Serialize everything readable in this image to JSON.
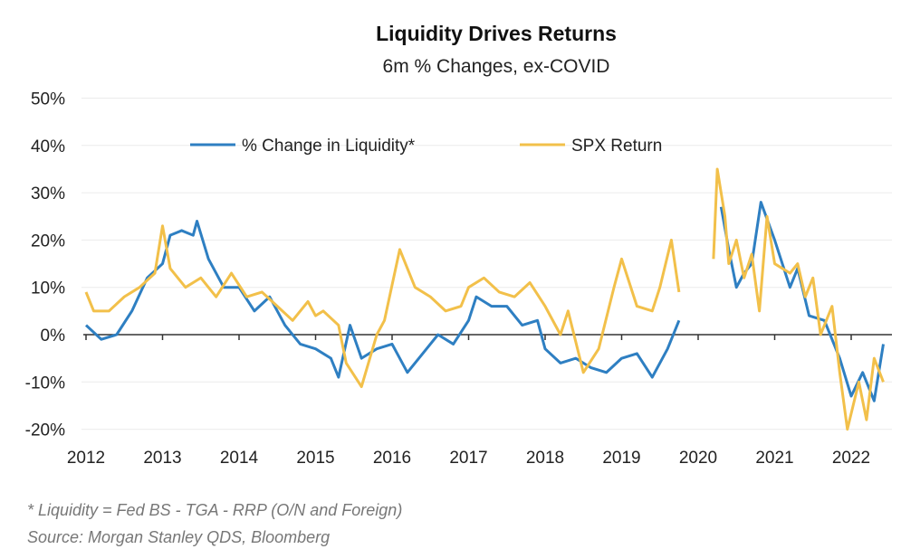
{
  "chart_data": {
    "type": "line",
    "title": "Liquidity Drives Returns",
    "subtitle": "6m % Changes, ex-COVID",
    "xlabel": "",
    "ylabel": "",
    "xlim": [
      2012,
      2022.45
    ],
    "ylim": [
      -20,
      50
    ],
    "y_ticks": [
      -20,
      -10,
      0,
      10,
      20,
      30,
      40,
      50
    ],
    "y_tick_labels": [
      "-20%",
      "-10%",
      "0%",
      "10%",
      "20%",
      "30%",
      "40%",
      "50%"
    ],
    "x_ticks": [
      2012,
      2013,
      2014,
      2015,
      2016,
      2017,
      2018,
      2019,
      2020,
      2021,
      2022
    ],
    "x_tick_labels": [
      "2012",
      "2013",
      "2014",
      "2015",
      "2016",
      "2017",
      "2018",
      "2019",
      "2020",
      "2021",
      "2022"
    ],
    "grid": true,
    "legend_position": "top-center",
    "series": [
      {
        "name": "% Change in Liquidity*",
        "color": "#2e7fc2",
        "segments": [
          [
            [
              2012.0,
              2
            ],
            [
              2012.2,
              -1
            ],
            [
              2012.4,
              0
            ],
            [
              2012.6,
              5
            ],
            [
              2012.8,
              12
            ],
            [
              2013.0,
              15
            ],
            [
              2013.1,
              21
            ],
            [
              2013.25,
              22
            ],
            [
              2013.4,
              21
            ],
            [
              2013.45,
              24
            ],
            [
              2013.6,
              16
            ],
            [
              2013.8,
              10
            ],
            [
              2014.0,
              10
            ],
            [
              2014.2,
              5
            ],
            [
              2014.4,
              8
            ],
            [
              2014.6,
              2
            ],
            [
              2014.8,
              -2
            ],
            [
              2015.0,
              -3
            ],
            [
              2015.2,
              -5
            ],
            [
              2015.3,
              -9
            ],
            [
              2015.45,
              2
            ],
            [
              2015.6,
              -5
            ],
            [
              2015.8,
              -3
            ],
            [
              2016.0,
              -2
            ],
            [
              2016.2,
              -8
            ],
            [
              2016.4,
              -4
            ],
            [
              2016.6,
              0
            ],
            [
              2016.8,
              -2
            ],
            [
              2017.0,
              3
            ],
            [
              2017.1,
              8
            ],
            [
              2017.3,
              6
            ],
            [
              2017.5,
              6
            ],
            [
              2017.7,
              2
            ],
            [
              2017.9,
              3
            ],
            [
              2018.0,
              -3
            ],
            [
              2018.2,
              -6
            ],
            [
              2018.4,
              -5
            ],
            [
              2018.6,
              -7
            ],
            [
              2018.8,
              -8
            ],
            [
              2019.0,
              -5
            ],
            [
              2019.2,
              -4
            ],
            [
              2019.4,
              -9
            ],
            [
              2019.6,
              -3
            ],
            [
              2019.75,
              3
            ]
          ],
          [
            [
              2020.3,
              27
            ],
            [
              2020.4,
              18
            ],
            [
              2020.5,
              10
            ],
            [
              2020.6,
              13
            ],
            [
              2020.7,
              15
            ],
            [
              2020.82,
              28
            ],
            [
              2021.0,
              20
            ],
            [
              2021.2,
              10
            ],
            [
              2021.3,
              14
            ],
            [
              2021.45,
              4
            ],
            [
              2021.65,
              3
            ],
            [
              2021.85,
              -5
            ],
            [
              2022.0,
              -13
            ],
            [
              2022.15,
              -8
            ],
            [
              2022.3,
              -14
            ],
            [
              2022.42,
              -2
            ]
          ]
        ]
      },
      {
        "name": "SPX Return",
        "color": "#f2c04a",
        "segments": [
          [
            [
              2012.0,
              9
            ],
            [
              2012.1,
              5
            ],
            [
              2012.3,
              5
            ],
            [
              2012.5,
              8
            ],
            [
              2012.7,
              10
            ],
            [
              2012.9,
              13
            ],
            [
              2013.0,
              23
            ],
            [
              2013.1,
              14
            ],
            [
              2013.3,
              10
            ],
            [
              2013.5,
              12
            ],
            [
              2013.7,
              8
            ],
            [
              2013.9,
              13
            ],
            [
              2014.1,
              8
            ],
            [
              2014.3,
              9
            ],
            [
              2014.5,
              6
            ],
            [
              2014.7,
              3
            ],
            [
              2014.9,
              7
            ],
            [
              2015.0,
              4
            ],
            [
              2015.1,
              5
            ],
            [
              2015.3,
              2
            ],
            [
              2015.4,
              -6
            ],
            [
              2015.6,
              -11
            ],
            [
              2015.8,
              0
            ],
            [
              2015.9,
              3
            ],
            [
              2016.1,
              18
            ],
            [
              2016.3,
              10
            ],
            [
              2016.5,
              8
            ],
            [
              2016.7,
              5
            ],
            [
              2016.9,
              6
            ],
            [
              2017.0,
              10
            ],
            [
              2017.2,
              12
            ],
            [
              2017.4,
              9
            ],
            [
              2017.6,
              8
            ],
            [
              2017.8,
              11
            ],
            [
              2018.0,
              6
            ],
            [
              2018.2,
              0
            ],
            [
              2018.3,
              5
            ],
            [
              2018.5,
              -8
            ],
            [
              2018.7,
              -3
            ],
            [
              2018.9,
              10
            ],
            [
              2019.0,
              16
            ],
            [
              2019.2,
              6
            ],
            [
              2019.4,
              5
            ],
            [
              2019.5,
              10
            ],
            [
              2019.65,
              20
            ],
            [
              2019.75,
              9
            ]
          ],
          [
            [
              2020.2,
              16
            ],
            [
              2020.25,
              35
            ],
            [
              2020.35,
              25
            ],
            [
              2020.4,
              15
            ],
            [
              2020.5,
              20
            ],
            [
              2020.6,
              12
            ],
            [
              2020.7,
              17
            ],
            [
              2020.8,
              5
            ],
            [
              2020.9,
              25
            ],
            [
              2021.0,
              15
            ],
            [
              2021.2,
              13
            ],
            [
              2021.3,
              15
            ],
            [
              2021.4,
              8
            ],
            [
              2021.5,
              12
            ],
            [
              2021.6,
              0
            ],
            [
              2021.75,
              6
            ],
            [
              2021.85,
              -8
            ],
            [
              2021.95,
              -20
            ],
            [
              2022.1,
              -10
            ],
            [
              2022.2,
              -18
            ],
            [
              2022.3,
              -5
            ],
            [
              2022.42,
              -10
            ]
          ]
        ]
      }
    ],
    "footnotes": [
      "* Liquidity = Fed BS - TGA - RRP (O/N and Foreign)",
      "Source: Morgan Stanley QDS, Bloomberg"
    ]
  }
}
